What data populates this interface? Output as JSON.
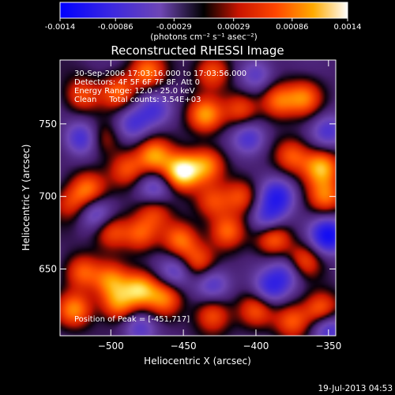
{
  "chart_data": {
    "type": "heatmap",
    "title": "Reconstructed RHESSI Image",
    "xlabel": "Heliocentric X (arcsec)",
    "ylabel": "Heliocentric Y (arcsec)",
    "xlim": [
      -535,
      -345
    ],
    "ylim": [
      604,
      794
    ],
    "x_ticks": [
      -500,
      -450,
      -400,
      -350
    ],
    "y_ticks": [
      650,
      700,
      750
    ],
    "colorbar": {
      "range": [
        -0.0014,
        0.0014
      ],
      "tick_values": [
        -0.0014,
        -0.00086,
        -0.00029,
        0.00029,
        0.00086,
        0.0014
      ],
      "tick_labels": [
        "-0.0014",
        "-0.00086",
        "-0.00029",
        "0.00029",
        "0.00086",
        "0.0014"
      ],
      "unit_label": "(photons cm⁻² s⁻¹ asec⁻²)"
    },
    "annotations": [
      "30-Sep-2006 17:03:16.000 to 17:03:56.000",
      "Detectors: 4F 5F 6F 7F 8F, Att 0",
      "Energy Range: 12.0 - 25.0 keV",
      "Clean     Total counts: 3.54E+03"
    ],
    "peak_label": "Position of Peak = [-451,717]",
    "peak": {
      "x": -451,
      "y": 717
    },
    "colormap": [
      "#0000ff",
      "#5a3cc8",
      "#2a1030",
      "#ff3000",
      "#ff9000",
      "#ffffff"
    ],
    "blobs": [
      {
        "x": -451,
        "y": 717,
        "v": 1.0
      },
      {
        "x": -470,
        "y": 728,
        "v": 0.65
      },
      {
        "x": -434,
        "y": 722,
        "v": 0.6
      },
      {
        "x": -489,
        "y": 719,
        "v": 0.45
      },
      {
        "x": -516,
        "y": 705,
        "v": 0.55
      },
      {
        "x": -528,
        "y": 695,
        "v": 0.35
      },
      {
        "x": -505,
        "y": 740,
        "v": 0.35
      },
      {
        "x": -520,
        "y": 770,
        "v": 0.45
      },
      {
        "x": -495,
        "y": 772,
        "v": 0.5
      },
      {
        "x": -475,
        "y": 786,
        "v": 0.55
      },
      {
        "x": -430,
        "y": 786,
        "v": 0.5
      },
      {
        "x": -435,
        "y": 756,
        "v": 0.65
      },
      {
        "x": -410,
        "y": 760,
        "v": 0.45
      },
      {
        "x": -385,
        "y": 766,
        "v": 0.55
      },
      {
        "x": -367,
        "y": 768,
        "v": 0.55
      },
      {
        "x": -375,
        "y": 728,
        "v": 0.5
      },
      {
        "x": -355,
        "y": 720,
        "v": 0.75
      },
      {
        "x": -352,
        "y": 700,
        "v": 0.55
      },
      {
        "x": -410,
        "y": 700,
        "v": 0.45
      },
      {
        "x": -430,
        "y": 696,
        "v": 0.4
      },
      {
        "x": -470,
        "y": 690,
        "v": 0.4
      },
      {
        "x": -500,
        "y": 676,
        "v": 0.5
      },
      {
        "x": -480,
        "y": 674,
        "v": 0.45
      },
      {
        "x": -452,
        "y": 670,
        "v": 0.55
      },
      {
        "x": -420,
        "y": 676,
        "v": 0.55
      },
      {
        "x": -388,
        "y": 672,
        "v": 0.6
      },
      {
        "x": -368,
        "y": 655,
        "v": 0.5
      },
      {
        "x": -440,
        "y": 655,
        "v": 0.45
      },
      {
        "x": -520,
        "y": 648,
        "v": 0.5
      },
      {
        "x": -500,
        "y": 642,
        "v": 0.55
      },
      {
        "x": -480,
        "y": 636,
        "v": 0.75
      },
      {
        "x": -495,
        "y": 626,
        "v": 0.6
      },
      {
        "x": -525,
        "y": 622,
        "v": 0.6
      },
      {
        "x": -463,
        "y": 630,
        "v": 0.55
      },
      {
        "x": -430,
        "y": 618,
        "v": 0.5
      },
      {
        "x": -400,
        "y": 622,
        "v": 0.45
      },
      {
        "x": -375,
        "y": 614,
        "v": 0.5
      },
      {
        "x": -355,
        "y": 622,
        "v": 0.6
      },
      {
        "x": -520,
        "y": 740,
        "v": -0.55
      },
      {
        "x": -470,
        "y": 760,
        "v": -0.4
      },
      {
        "x": -405,
        "y": 740,
        "v": -0.5
      },
      {
        "x": -485,
        "y": 750,
        "v": -0.45
      },
      {
        "x": -385,
        "y": 700,
        "v": -0.65
      },
      {
        "x": -392,
        "y": 684,
        "v": -0.55
      },
      {
        "x": -350,
        "y": 673,
        "v": -0.85
      },
      {
        "x": -470,
        "y": 705,
        "v": -0.4
      },
      {
        "x": -510,
        "y": 688,
        "v": -0.45
      },
      {
        "x": -430,
        "y": 640,
        "v": -0.45
      },
      {
        "x": -390,
        "y": 637,
        "v": -0.55
      },
      {
        "x": -378,
        "y": 648,
        "v": -0.45
      },
      {
        "x": -455,
        "y": 648,
        "v": -0.4
      },
      {
        "x": -350,
        "y": 609,
        "v": -0.55
      },
      {
        "x": -480,
        "y": 610,
        "v": -0.4
      },
      {
        "x": -350,
        "y": 745,
        "v": -0.45
      },
      {
        "x": -400,
        "y": 784,
        "v": -0.4
      }
    ]
  },
  "timestamp": "19-Jul-2013 04:53"
}
